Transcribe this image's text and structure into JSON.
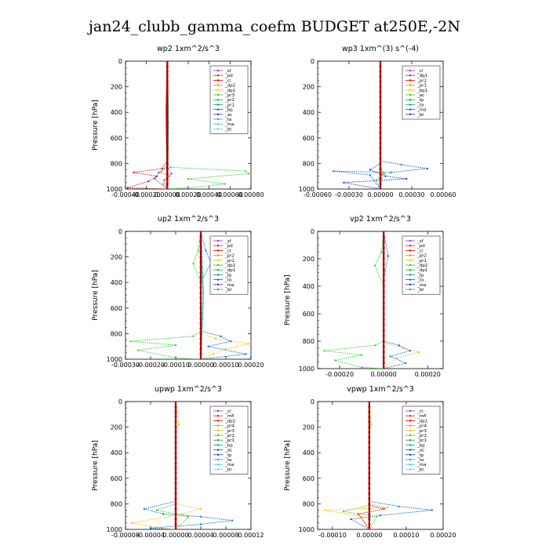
{
  "title": "jan24_clubb_gamma_coefm  BUDGET at250E,-2N",
  "chart_data": [
    {
      "type": "line",
      "title": "wp2   1xm^2/s^3",
      "ylabel": "Pressure [hPa]",
      "ylim": [
        1000,
        0
      ],
      "yticks": [
        0,
        200,
        400,
        600,
        800,
        1000
      ],
      "xlim": [
        -0.0004,
        0.0008
      ],
      "xticks": [
        "-0.00040",
        "-0.00020",
        "0.00000",
        "0.00020",
        "0.00040",
        "0.00060",
        "0.00080"
      ],
      "legend": [
        "_sf",
        "_pd",
        "_cl",
        "_dp2",
        "_dp1",
        "_pr3",
        "_pr2",
        "_pr1",
        "_bp",
        "_ac",
        "_ta",
        "_ma",
        "_bt"
      ],
      "series": [
        {
          "name": "_dp1",
          "color": "#dd0000",
          "points": [
            [
              0,
              0
            ],
            [
              0,
              780
            ],
            [
              -5e-05,
              840
            ],
            [
              -0.00032,
              870
            ],
            [
              -0.0001,
              900
            ],
            [
              -0.00018,
              940
            ],
            [
              -0.00038,
              990
            ],
            [
              0,
              1000
            ]
          ]
        },
        {
          "name": "_pr2",
          "color": "#ff8800",
          "points": [
            [
              0,
              0
            ],
            [
              0,
              820
            ],
            [
              -6e-05,
              870
            ],
            [
              2e-05,
              900
            ],
            [
              -4e-05,
              960
            ],
            [
              0,
              1000
            ]
          ]
        },
        {
          "name": "_ac",
          "color": "#33cc33",
          "points": [
            [
              0,
              0
            ],
            [
              0,
              800
            ],
            [
              3e-05,
              830
            ],
            [
              0.00075,
              860
            ],
            [
              0.00078,
              880
            ],
            [
              0.0002,
              920
            ],
            [
              0.00055,
              960
            ],
            [
              0.0002,
              990
            ],
            [
              0,
              1000
            ]
          ]
        },
        {
          "name": "_ta",
          "color": "#0066cc",
          "points": [
            [
              0,
              0
            ],
            [
              0,
              820
            ],
            [
              -8e-05,
              870
            ],
            [
              -0.00012,
              920
            ],
            [
              0,
              1000
            ]
          ]
        },
        {
          "name": "_sf",
          "color": "#9933cc",
          "points": [
            [
              0,
              0
            ],
            [
              0,
              820
            ],
            [
              4e-05,
              880
            ],
            [
              -3e-05,
              930
            ],
            [
              0,
              1000
            ]
          ]
        },
        {
          "name": "_bt",
          "color": "#33cccc",
          "points": [
            [
              0,
              0
            ],
            [
              1e-05,
              500
            ],
            [
              0,
              1000
            ]
          ]
        },
        {
          "name": "_cl",
          "color": "#cc2222",
          "points": [
            [
              0,
              0
            ],
            [
              -1e-05,
              400
            ],
            [
              0,
              1000
            ]
          ]
        }
      ]
    },
    {
      "type": "line",
      "title": "wp3   1xm^(3) s^(-4)",
      "ylabel": "",
      "ylim": [
        1000,
        0
      ],
      "yticks": [
        0,
        200,
        400,
        600,
        800,
        1000
      ],
      "xlim": [
        -0.0006,
        0.0006
      ],
      "xticks": [
        "-0.00060",
        "-0.00030",
        "0.00000",
        "0.00030",
        "0.00060"
      ],
      "legend": [
        "_cl",
        "_dp1",
        "_pr2",
        "_pr1",
        "_bp1",
        "_ac",
        "_tp",
        "_ta",
        "_ma",
        "_bt"
      ],
      "series": [
        {
          "name": "_tp",
          "color": "#0066cc",
          "points": [
            [
              0,
              0
            ],
            [
              0,
              780
            ],
            [
              0.0002,
              810
            ],
            [
              0.00045,
              840
            ],
            [
              0.0001,
              870
            ],
            [
              -0.00045,
              860
            ],
            [
              -0.0001,
              890
            ],
            [
              0,
              1000
            ]
          ]
        },
        {
          "name": "_ta",
          "color": "#1133cc",
          "points": [
            [
              0,
              0
            ],
            [
              0,
              800
            ],
            [
              -0.0001,
              850
            ],
            [
              5e-05,
              900
            ],
            [
              0.00025,
              920
            ],
            [
              -0.00035,
              950
            ],
            [
              0,
              1000
            ]
          ]
        },
        {
          "name": "_ac",
          "color": "#33cc33",
          "points": [
            [
              0,
              0
            ],
            [
              0,
              830
            ],
            [
              4e-05,
              880
            ],
            [
              -4e-05,
              930
            ],
            [
              0,
              1000
            ]
          ]
        },
        {
          "name": "_pr2",
          "color": "#ff8800",
          "points": [
            [
              0,
              0
            ],
            [
              0,
              820
            ],
            [
              2e-05,
              880
            ],
            [
              0,
              1000
            ]
          ]
        },
        {
          "name": "_cl",
          "color": "#cc2222",
          "points": [
            [
              0,
              0
            ],
            [
              0,
              1000
            ]
          ]
        }
      ]
    },
    {
      "type": "line",
      "title": "up2   1xm^2/s^3",
      "ylabel": "Pressure [hPa]",
      "ylim": [
        1000,
        0
      ],
      "yticks": [
        0,
        200,
        400,
        600,
        800,
        1000
      ],
      "xlim": [
        -0.0003,
        0.0002
      ],
      "xticks": [
        "-0.00030",
        "-0.00020",
        "-0.00010",
        "0.00000",
        "0.00010",
        "0.00020"
      ],
      "legend": [
        "_sf",
        "_pd",
        "_cl",
        "_pr2",
        "_pr1",
        "_dp2",
        "_dp1",
        "_tp",
        "_ta",
        "_ma",
        "_bt"
      ],
      "series": [
        {
          "name": "_ac",
          "color": "#33cc33",
          "points": [
            [
              0,
              0
            ],
            [
              -1e-05,
              150
            ],
            [
              -3e-05,
              250
            ],
            [
              0,
              400
            ],
            [
              0,
              780
            ],
            [
              -3e-05,
              820
            ],
            [
              -0.00028,
              860
            ],
            [
              -0.0001,
              890
            ],
            [
              -0.00025,
              930
            ],
            [
              -0.0001,
              990
            ],
            [
              0,
              1000
            ]
          ]
        },
        {
          "name": "_pr1",
          "color": "#ffbb00",
          "points": [
            [
              0,
              0
            ],
            [
              0,
              800
            ],
            [
              6e-05,
              840
            ],
            [
              0.00019,
              880
            ],
            [
              0.0001,
              920
            ],
            [
              5e-05,
              960
            ],
            [
              0,
              1000
            ]
          ]
        },
        {
          "name": "_tp",
          "color": "#0066cc",
          "points": [
            [
              0,
              0
            ],
            [
              2e-05,
              150
            ],
            [
              4e-05,
              250
            ],
            [
              0,
              400
            ],
            [
              0,
              780
            ],
            [
              8e-05,
              820
            ],
            [
              0.00012,
              860
            ],
            [
              3e-05,
              900
            ],
            [
              0.00018,
              960
            ],
            [
              0,
              1000
            ]
          ]
        },
        {
          "name": "_dp1",
          "color": "#dd0000",
          "points": [
            [
              0,
              0
            ],
            [
              0,
              1000
            ]
          ]
        },
        {
          "name": "_bt",
          "color": "#33cccc",
          "points": [
            [
              0,
              0
            ],
            [
              1e-05,
              500
            ],
            [
              0,
              1000
            ]
          ]
        }
      ]
    },
    {
      "type": "line",
      "title": "vp2   1xm^2/s^3",
      "ylabel": "Pressure [hPa]",
      "ylim": [
        1000,
        0
      ],
      "yticks": [
        0,
        200,
        400,
        600,
        800,
        1000
      ],
      "xlim": [
        -0.0003,
        0.00027
      ],
      "xticks": [
        "-0.00020",
        "0.00000",
        "0.00020"
      ],
      "xtickvals": [
        -0.0002,
        0,
        0.0002
      ],
      "legend": [
        "_sf",
        "_pd",
        "_cl",
        "_pr2",
        "_pr1",
        "_dp2",
        "_dp1",
        "_tp",
        "_ta",
        "_ma",
        "_bt"
      ],
      "series": [
        {
          "name": "_ac",
          "color": "#33cc33",
          "points": [
            [
              0,
              0
            ],
            [
              -1e-05,
              150
            ],
            [
              -4e-05,
              250
            ],
            [
              0,
              400
            ],
            [
              0,
              800
            ],
            [
              -4e-05,
              830
            ],
            [
              -0.00027,
              870
            ],
            [
              -0.0001,
              900
            ],
            [
              -0.00022,
              940
            ],
            [
              -0.0001,
              990
            ],
            [
              0,
              1000
            ]
          ]
        },
        {
          "name": "_pr1",
          "color": "#ffbb00",
          "points": [
            [
              0,
              0
            ],
            [
              0,
              810
            ],
            [
              9e-05,
              850
            ],
            [
              0.00016,
              880
            ],
            [
              6e-05,
              920
            ],
            [
              0,
              1000
            ]
          ]
        },
        {
          "name": "_tp",
          "color": "#0066cc",
          "points": [
            [
              0,
              0
            ],
            [
              2e-05,
              180
            ],
            [
              0,
              350
            ],
            [
              0,
              800
            ],
            [
              7e-05,
              830
            ],
            [
              0.00012,
              870
            ],
            [
              3e-05,
              910
            ],
            [
              0.0001,
              960
            ],
            [
              0,
              1000
            ]
          ]
        },
        {
          "name": "_dp1",
          "color": "#dd0000",
          "points": [
            [
              0,
              0
            ],
            [
              0,
              1000
            ]
          ]
        }
      ]
    },
    {
      "type": "line",
      "title": "upwp   1xm^2/s^3",
      "ylabel": "Pressure [hPa]",
      "ylim": [
        1000,
        0
      ],
      "yticks": [
        0,
        200,
        400,
        600,
        800,
        1000
      ],
      "xlim": [
        -8e-05,
        0.00012
      ],
      "xticks": [
        "-0.00008",
        "-0.00004",
        "0.00000",
        "0.00004",
        "0.00008",
        "0.00012"
      ],
      "legend": [
        "_cl",
        "_mfl",
        "_dp1",
        "_pr4",
        "_pr3",
        "_pr2",
        "_pr1",
        "_bp",
        "_ac",
        "_tp",
        "_ta",
        "_ma",
        "_bt"
      ],
      "series": [
        {
          "name": "_tp",
          "color": "#0066cc",
          "points": [
            [
              0,
              0
            ],
            [
              0,
              780
            ],
            [
              -5e-05,
              840
            ],
            [
              -2e-05,
              880
            ],
            [
              4e-05,
              900
            ],
            [
              9e-05,
              930
            ],
            [
              4e-05,
              960
            ],
            [
              -4e-05,
              990
            ],
            [
              0,
              1000
            ]
          ]
        },
        {
          "name": "_pr1",
          "color": "#ffbb00",
          "points": [
            [
              0,
              0
            ],
            [
              5e-06,
              180
            ],
            [
              0,
              250
            ],
            [
              0,
              800
            ],
            [
              4e-05,
              840
            ],
            [
              1e-05,
              880
            ],
            [
              -7e-05,
              950
            ],
            [
              -2e-05,
              990
            ],
            [
              0,
              1000
            ]
          ]
        },
        {
          "name": "_ac",
          "color": "#33cc33",
          "points": [
            [
              0,
              0
            ],
            [
              0,
              800
            ],
            [
              -3e-05,
              850
            ],
            [
              2e-05,
              900
            ],
            [
              0,
              1000
            ]
          ]
        },
        {
          "name": "_dp1",
          "color": "#dd0000",
          "points": [
            [
              0,
              0
            ],
            [
              0,
              1000
            ]
          ]
        },
        {
          "name": "_mfl",
          "color": "#9933cc",
          "points": [
            [
              0,
              0
            ],
            [
              0,
              1000
            ]
          ]
        }
      ]
    },
    {
      "type": "line",
      "title": "vpwp   1xm^2/s^3",
      "ylabel": "Pressure [hPa]",
      "ylim": [
        1000,
        0
      ],
      "yticks": [
        0,
        200,
        400,
        600,
        800,
        1000
      ],
      "xlim": [
        -0.00014,
        0.0002
      ],
      "xticks": [
        "-0.00010",
        "0.00000",
        "0.00010",
        "0.00020"
      ],
      "xtickvals": [
        -0.0001,
        0,
        0.0001,
        0.0002
      ],
      "legend": [
        "_cl",
        "_mfl",
        "_dp1",
        "_pr4",
        "_pr3",
        "_pr2",
        "_pr1",
        "_bp",
        "_ac",
        "_tp",
        "_ta",
        "_ma",
        "_bt"
      ],
      "series": [
        {
          "name": "_tp",
          "color": "#0066cc",
          "points": [
            [
              0,
              0
            ],
            [
              0,
              780
            ],
            [
              8e-05,
              820
            ],
            [
              0.00017,
              850
            ],
            [
              3e-05,
              890
            ],
            [
              -5e-05,
              920
            ],
            [
              0,
              1000
            ]
          ]
        },
        {
          "name": "_pr1",
          "color": "#ffbb00",
          "points": [
            [
              0,
              0
            ],
            [
              5e-06,
              180
            ],
            [
              0,
              250
            ],
            [
              0,
              800
            ],
            [
              5e-05,
              830
            ],
            [
              -0.00012,
              850
            ],
            [
              -2e-05,
              900
            ],
            [
              0,
              1000
            ]
          ]
        },
        {
          "name": "_ac",
          "color": "#33cc33",
          "points": [
            [
              0,
              0
            ],
            [
              0,
              810
            ],
            [
              -7e-05,
              860
            ],
            [
              2e-05,
              900
            ],
            [
              0,
              1000
            ]
          ]
        },
        {
          "name": "_pr2",
          "color": "#dd0000",
          "points": [
            [
              0,
              0
            ],
            [
              0,
              810
            ],
            [
              4e-05,
              840
            ],
            [
              -3e-05,
              880
            ],
            [
              0,
              1000
            ]
          ]
        },
        {
          "name": "_dp1",
          "color": "#cc2222",
          "points": [
            [
              0,
              0
            ],
            [
              0,
              1000
            ]
          ]
        }
      ]
    }
  ]
}
